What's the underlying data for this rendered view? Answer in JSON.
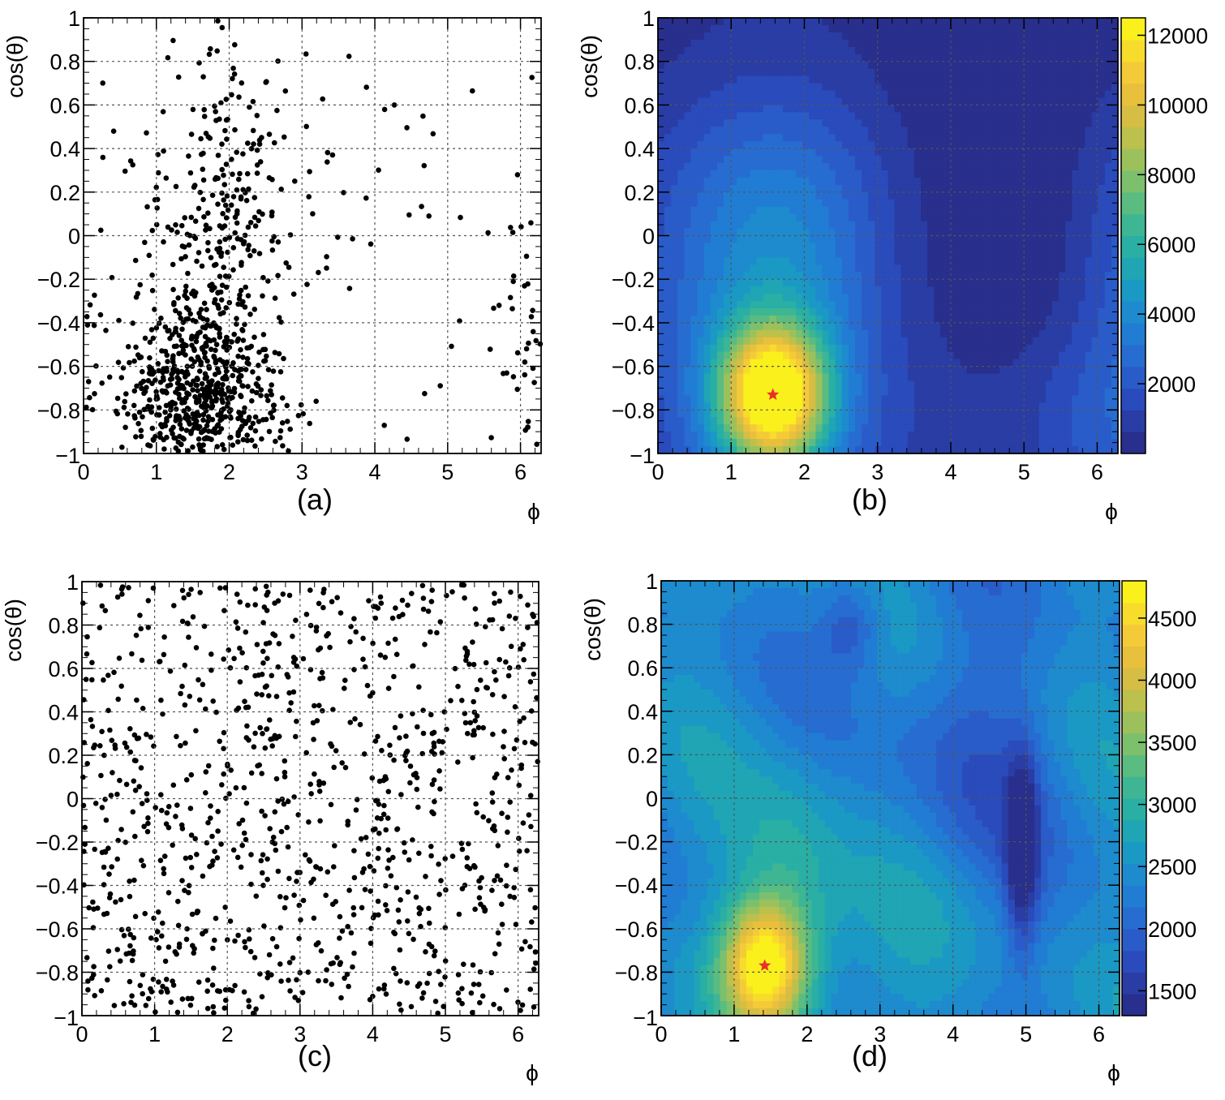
{
  "figure": {
    "panels": [
      {
        "id": "a",
        "label": "(a)",
        "kind": "scatter"
      },
      {
        "id": "b",
        "label": "(b)",
        "kind": "heatmap"
      },
      {
        "id": "c",
        "label": "(c)",
        "kind": "scatter"
      },
      {
        "id": "d",
        "label": "(d)",
        "kind": "heatmap"
      }
    ]
  },
  "colors": {
    "marker": "#000000",
    "star": "#e8302a",
    "grid": "#555555",
    "colormap": [
      "#282f8c",
      "#2a47b8",
      "#2a63cf",
      "#1f80d4",
      "#1a98c6",
      "#22acaa",
      "#45b98d",
      "#7fc06b",
      "#b7c14e",
      "#e4bb3e",
      "#f8cd37",
      "#f9f01c"
    ]
  },
  "chart_data": [
    {
      "id": "a",
      "type": "scatter",
      "title": "",
      "panel_label": "(a)",
      "xlabel": "ϕ",
      "ylabel": "cos(θ)",
      "xlim": [
        0,
        6.2832
      ],
      "ylim": [
        -1,
        1
      ],
      "xticks": [
        "0",
        "1",
        "2",
        "3",
        "4",
        "5",
        "6"
      ],
      "yticks": [
        "−1",
        "−0.8",
        "−0.6",
        "−0.4",
        "−0.2",
        "0",
        "0.2",
        "0.4",
        "0.6",
        "0.8",
        "1"
      ],
      "grid": true,
      "distribution": {
        "n_points": 1000,
        "clusters": [
          {
            "phi": 1.6,
            "cos": -0.75,
            "sd_phi": 0.55,
            "sd_cos": 0.2,
            "weight": 0.55
          },
          {
            "phi": 1.8,
            "cos": -0.2,
            "sd_phi": 0.5,
            "sd_cos": 0.35,
            "weight": 0.2
          },
          {
            "phi": 2.0,
            "cos": 0.3,
            "sd_phi": 0.6,
            "sd_cos": 0.3,
            "weight": 0.12
          },
          {
            "phi": 6.1,
            "cos": -0.5,
            "sd_phi": 0.25,
            "sd_cos": 0.35,
            "weight": 0.04
          }
        ],
        "uniform_fraction": 0.09,
        "seed": 7
      }
    },
    {
      "id": "b",
      "type": "heatmap",
      "title": "",
      "panel_label": "(b)",
      "xlabel": "ϕ",
      "ylabel": "cos(θ)",
      "xlim": [
        0,
        6.2832
      ],
      "ylim": [
        -1,
        1
      ],
      "xticks": [
        "0",
        "1",
        "2",
        "3",
        "4",
        "5",
        "6"
      ],
      "yticks": [
        "−1",
        "−0.8",
        "−0.6",
        "−0.4",
        "−0.2",
        "0",
        "0.2",
        "0.4",
        "0.6",
        "0.8",
        "1"
      ],
      "grid": true,
      "colorbar": {
        "min": 0,
        "max": 12500,
        "ticks": [
          "2000",
          "4000",
          "6000",
          "8000",
          "10000",
          "12000"
        ],
        "tick_values": [
          2000,
          4000,
          6000,
          8000,
          10000,
          12000
        ]
      },
      "maximum": {
        "phi": 1.57,
        "cos": -0.73,
        "value": 12500
      },
      "features": [
        {
          "kind": "peak",
          "phi": 1.57,
          "cos": -0.73,
          "sd_phi": 0.5,
          "sd_cos": 0.22,
          "value": 11500
        },
        {
          "kind": "ridge",
          "phi": 1.6,
          "cos": -0.2,
          "sd_phi": 1.1,
          "sd_cos": 0.9,
          "value": 3800
        },
        {
          "kind": "floor",
          "phi": 4.8,
          "cos": 0.3,
          "sd_phi": 1.0,
          "sd_cos": 1.5,
          "value": 0
        }
      ]
    },
    {
      "id": "c",
      "type": "scatter",
      "title": "",
      "panel_label": "(c)",
      "xlabel": "ϕ",
      "ylabel": "cos(θ)",
      "xlim": [
        0,
        6.2832
      ],
      "ylim": [
        -1,
        1
      ],
      "xticks": [
        "0",
        "1",
        "2",
        "3",
        "4",
        "5",
        "6"
      ],
      "yticks": [
        "−1",
        "−0.8",
        "−0.6",
        "−0.4",
        "−0.2",
        "0",
        "0.2",
        "0.4",
        "0.6",
        "0.8",
        "1"
      ],
      "grid": true,
      "distribution": {
        "n_points": 1000,
        "clusters": [
          {
            "phi": 1.4,
            "cos": -0.78,
            "sd_phi": 0.5,
            "sd_cos": 0.2,
            "weight": 0.05
          }
        ],
        "uniform_fraction": 0.95,
        "seed": 13
      }
    },
    {
      "id": "d",
      "type": "heatmap",
      "title": "",
      "panel_label": "(d)",
      "xlabel": "ϕ",
      "ylabel": "cos(θ)",
      "xlim": [
        0,
        6.2832
      ],
      "ylim": [
        -1,
        1
      ],
      "xticks": [
        "0",
        "1",
        "2",
        "3",
        "4",
        "5",
        "6"
      ],
      "yticks": [
        "−1",
        "−0.8",
        "−0.6",
        "−0.4",
        "−0.2",
        "0",
        "0.2",
        "0.4",
        "0.6",
        "0.8",
        "1"
      ],
      "grid": true,
      "colorbar": {
        "min": 1300,
        "max": 4800,
        "ticks": [
          "1500",
          "2000",
          "2500",
          "3000",
          "3500",
          "4000",
          "4500"
        ],
        "tick_values": [
          1500,
          2000,
          2500,
          3000,
          3500,
          4000,
          4500
        ]
      },
      "maximum": {
        "phi": 1.42,
        "cos": -0.77,
        "value": 4800
      },
      "features": [
        {
          "kind": "peak",
          "phi": 1.42,
          "cos": -0.77,
          "sd_phi": 0.4,
          "sd_cos": 0.2,
          "value": 4700
        },
        {
          "kind": "ridge",
          "phi": 1.8,
          "cos": -0.45,
          "sd_phi": 0.55,
          "sd_cos": 0.4,
          "value": 3000
        },
        {
          "kind": "trough",
          "phi": 4.95,
          "cos": -0.25,
          "sd_phi": 0.15,
          "sd_cos": 0.3,
          "value": 1300
        },
        {
          "kind": "trough",
          "phi": 2.6,
          "cos": 0.8,
          "sd_phi": 0.3,
          "sd_cos": 0.15,
          "value": 1800
        }
      ]
    }
  ]
}
